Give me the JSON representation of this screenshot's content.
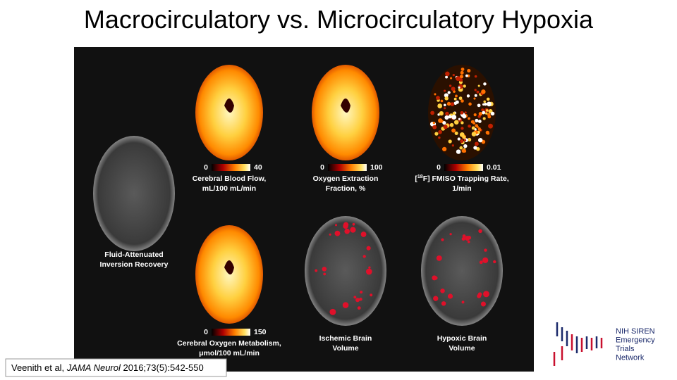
{
  "title": "Macrocirculatory vs. Microcirculatory Hypoxia",
  "figure": {
    "panels": [
      {
        "label": [
          "Fluid-Attenuated",
          "Inversion Recovery"
        ]
      },
      {
        "label": [
          "Cerebral Blood Flow,",
          "mL/100 mL/min"
        ],
        "scale": {
          "min": 0,
          "max": 40
        }
      },
      {
        "label": [
          "Oxygen Extraction",
          "Fraction, %"
        ],
        "scale": {
          "min": 0,
          "max": 100
        }
      },
      {
        "label_prefix": "[",
        "label_sup": "18",
        "label": [
          "F] FMISO Trapping Rate,",
          "1/min"
        ],
        "scale": {
          "min": 0,
          "max": 0.01
        }
      },
      {
        "label": [
          "Cerebral Oxygen Metabolism,",
          "μmol/100 mL/min"
        ],
        "scale": {
          "min": 0,
          "max": 150
        }
      },
      {
        "label": [
          "Ischemic Brain",
          "Volume"
        ]
      },
      {
        "label": [
          "Hypoxic Brain",
          "Volume"
        ]
      }
    ]
  },
  "citation": {
    "authors": "Veenith et al, ",
    "journal": "JAMA Neurol",
    "details": " 2016;73(5):542-550"
  },
  "logo": {
    "lines": [
      "NIH SIREN",
      "Emergency",
      "Trials",
      "Network"
    ]
  }
}
